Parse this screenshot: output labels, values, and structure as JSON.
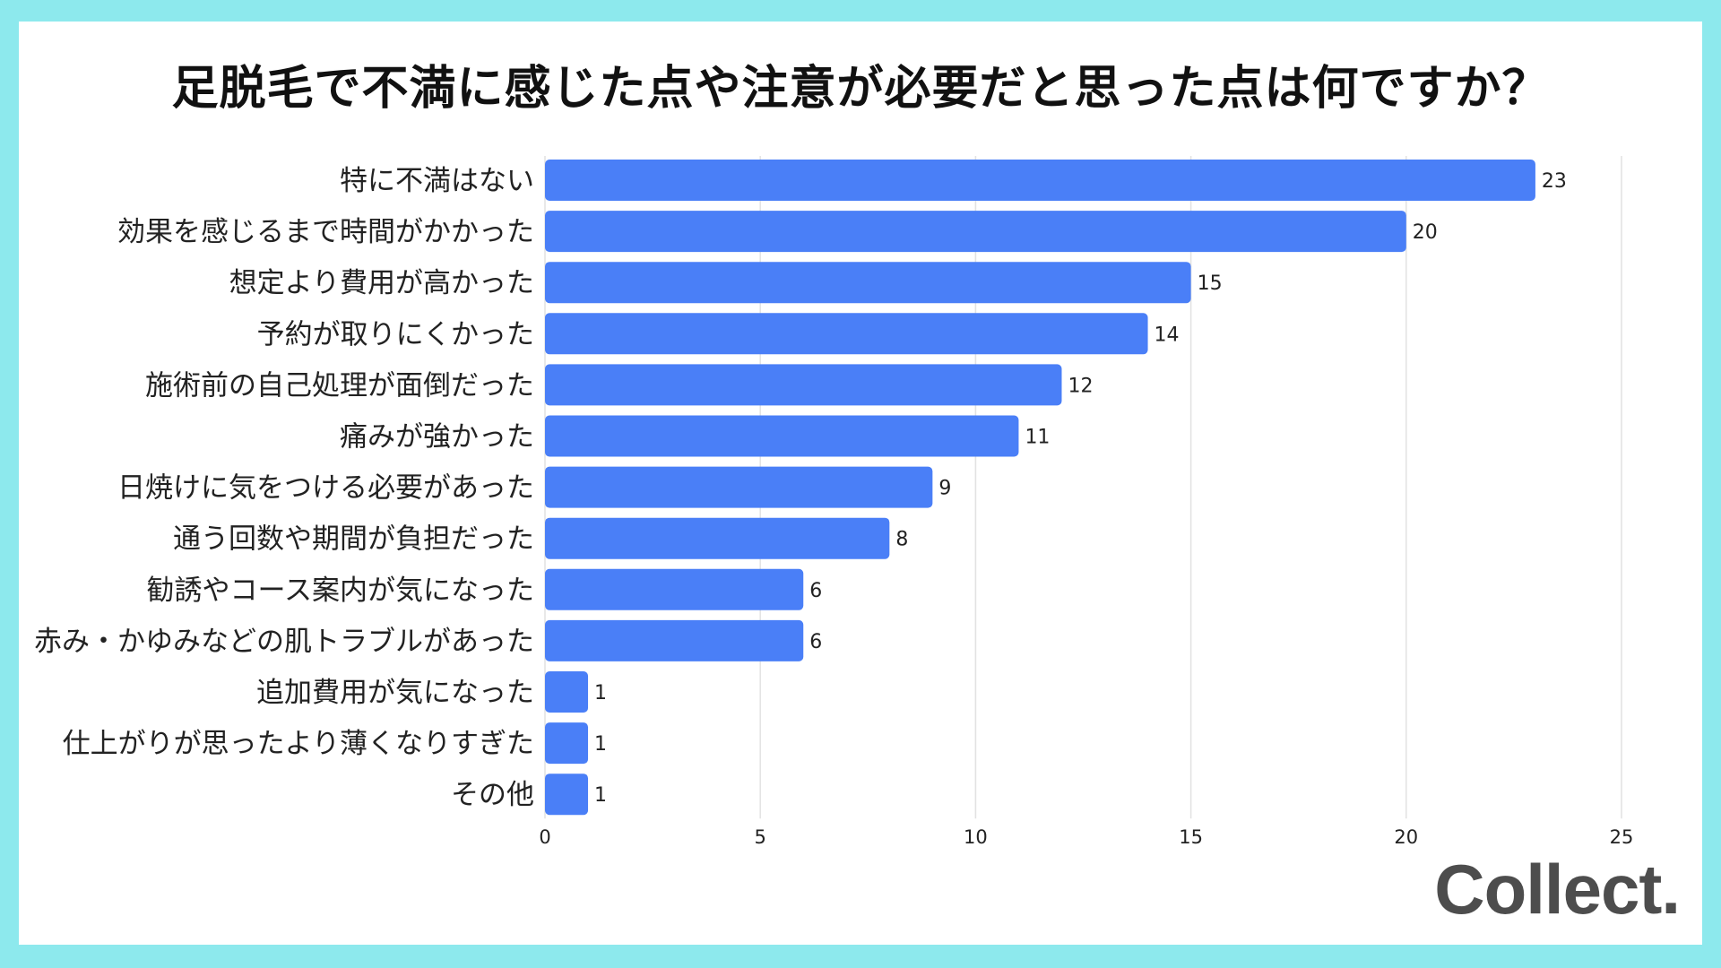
{
  "colors": {
    "page_background": "#8de9ed",
    "card_background": "#ffffff",
    "bar": "#4a7ff7",
    "gridline": "#e2e2e2",
    "text": "#222222",
    "logo": "#4d4d4d"
  },
  "chart_data": {
    "type": "bar",
    "orientation": "horizontal",
    "title": "足脱毛で不満に感じた点や注意が必要だと思った点は何ですか？",
    "categories": [
      "特に不満はない",
      "効果を感じるまで時間がかかった",
      "想定より費用が高かった",
      "予約が取りにくかった",
      "施術前の自己処理が面倒だった",
      "痛みが強かった",
      "日焼けに気をつける必要があった",
      "通う回数や期間が負担だった",
      "勧誘やコース案内が気になった",
      "赤み・かゆみなどの肌トラブルがあった",
      "追加費用が気になった",
      "仕上がりが思ったより薄くなりすぎた",
      "その他"
    ],
    "values": [
      23,
      20,
      15,
      14,
      12,
      11,
      9,
      8,
      6,
      6,
      1,
      1,
      1
    ],
    "xlim": [
      0,
      25
    ],
    "xticks": [
      0,
      5,
      10,
      15,
      20,
      25
    ],
    "grid": true,
    "data_labels": true
  },
  "brand": {
    "logo_text": "Collect."
  }
}
